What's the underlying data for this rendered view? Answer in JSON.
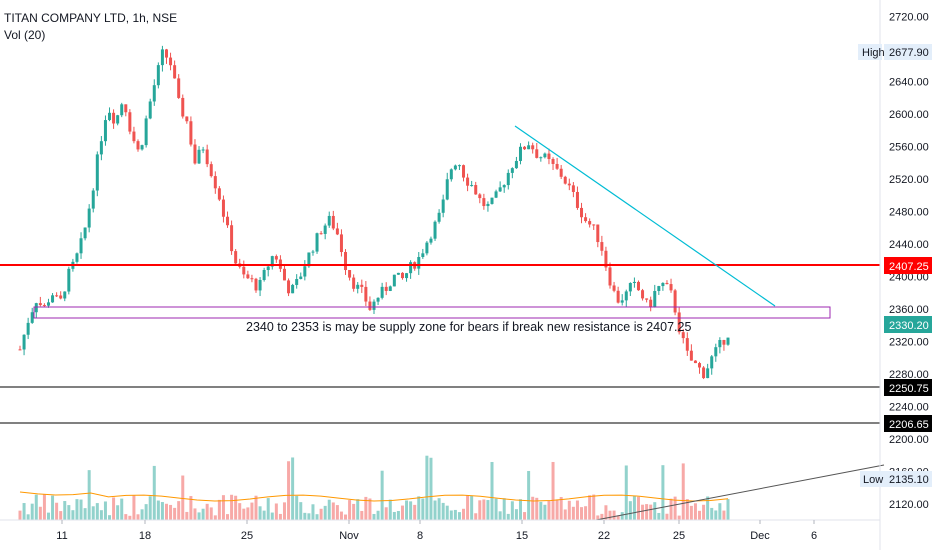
{
  "header": {
    "title": "TITAN COMPANY LTD, 1h, NSE",
    "indicator": "Vol (20)"
  },
  "annotation": "2340 to 2353 is may be supply zone for bears if break new resistance is 2407.25",
  "colors": {
    "up": "#26a69a",
    "down": "#ef5350",
    "resistance": "#ff0000",
    "zone": "#9c27b0",
    "trendline": "#00bcd4",
    "support": "#000000",
    "volume_line": "#ff9800"
  },
  "chart_data": {
    "type": "candlestick",
    "title": "TITAN COMPANY LTD, 1h, NSE",
    "ylim": [
      2100,
      2740
    ],
    "y_ticks": [
      "2720.00",
      "2680.00",
      "2640.00",
      "2600.00",
      "2560.00",
      "2520.00",
      "2480.00",
      "2440.00",
      "2400.00",
      "2360.00",
      "2320.00",
      "2280.00",
      "2240.00",
      "2200.00",
      "2160.00",
      "2120.00"
    ],
    "x_ticks": [
      "11",
      "18",
      "25",
      "Nov",
      "8",
      "15",
      "22",
      "25",
      "Dec",
      "6"
    ],
    "price_labels": {
      "high": {
        "label": "High",
        "value": "2677.90"
      },
      "last": "2330.20",
      "resistance": "2407.25",
      "support1": "2250.75",
      "support2": "2206.65",
      "low": {
        "label": "Low",
        "value": "2135.10"
      }
    },
    "price_path": [
      2310,
      2345,
      2372,
      2360,
      2380,
      2365,
      2400,
      2420,
      2450,
      2500,
      2560,
      2610,
      2590,
      2620,
      2575,
      2550,
      2600,
      2640,
      2677,
      2660,
      2610,
      2590,
      2540,
      2560,
      2530,
      2500,
      2460,
      2420,
      2400,
      2395,
      2385,
      2410,
      2430,
      2400,
      2380,
      2395,
      2420,
      2440,
      2460,
      2470,
      2450,
      2410,
      2390,
      2380,
      2360,
      2375,
      2385,
      2400,
      2395,
      2410,
      2420,
      2440,
      2460,
      2480,
      2530,
      2545,
      2520,
      2510,
      2490,
      2485,
      2500,
      2520,
      2540,
      2555,
      2565,
      2550,
      2545,
      2535,
      2525,
      2510,
      2490,
      2470,
      2460,
      2440,
      2400,
      2370,
      2375,
      2390,
      2380,
      2360,
      2385,
      2390,
      2375,
      2330,
      2300,
      2290,
      2280,
      2300,
      2315,
      2330
    ]
  }
}
